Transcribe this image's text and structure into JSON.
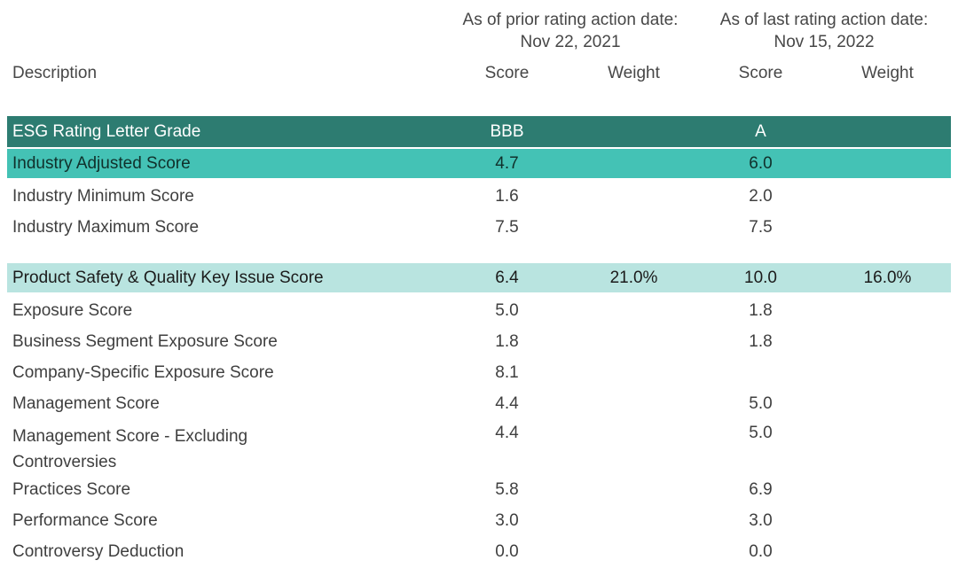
{
  "header": {
    "description_label": "Description",
    "groups": [
      {
        "line1": "As of prior rating action date:",
        "line2": "Nov 22, 2021"
      },
      {
        "line1": "As of last rating action date:",
        "line2": "Nov 15, 2022"
      }
    ],
    "columns": [
      "Score",
      "Weight",
      "Score",
      "Weight"
    ]
  },
  "colors": {
    "grade_row_bg": "#2d7c71",
    "grade_row_text": "#ffffff",
    "highlight_row_bg": "#44c2b5",
    "key_issue_row_bg": "#b9e4e0",
    "body_text": "#3f3f3f",
    "background": "#ffffff"
  },
  "rows": [
    {
      "label": "ESG Rating Letter Grade",
      "score_prior": "BBB",
      "weight_prior": "",
      "score_last": "A",
      "weight_last": "",
      "style": "grade"
    },
    {
      "label": "Industry Adjusted Score",
      "score_prior": "4.7",
      "weight_prior": "",
      "score_last": "6.0",
      "weight_last": "",
      "style": "highlight"
    },
    {
      "label": "Industry Minimum Score",
      "score_prior": "1.6",
      "weight_prior": "",
      "score_last": "2.0",
      "weight_last": "",
      "style": "plain"
    },
    {
      "label": "Industry Maximum Score",
      "score_prior": "7.5",
      "weight_prior": "",
      "score_last": "7.5",
      "weight_last": "",
      "style": "plain"
    },
    {
      "label": "Product Safety & Quality Key Issue Score",
      "score_prior": "6.4",
      "weight_prior": "21.0%",
      "score_last": "10.0",
      "weight_last": "16.0%",
      "style": "keyissue",
      "gap_before": true
    },
    {
      "label": "Exposure Score",
      "score_prior": "5.0",
      "weight_prior": "",
      "score_last": "1.8",
      "weight_last": "",
      "style": "plain"
    },
    {
      "label": "Business Segment Exposure Score",
      "score_prior": "1.8",
      "weight_prior": "",
      "score_last": "1.8",
      "weight_last": "",
      "style": "plain"
    },
    {
      "label": "Company-Specific Exposure Score",
      "score_prior": "8.1",
      "weight_prior": "",
      "score_last": "",
      "weight_last": "",
      "style": "plain"
    },
    {
      "label": "Management Score",
      "score_prior": "4.4",
      "weight_prior": "",
      "score_last": "5.0",
      "weight_last": "",
      "style": "plain"
    },
    {
      "label": "Management Score - Excluding Controversies",
      "score_prior": "4.4",
      "weight_prior": "",
      "score_last": "5.0",
      "weight_last": "",
      "style": "plain",
      "wrap": true
    },
    {
      "label": "Practices Score",
      "score_prior": "5.8",
      "weight_prior": "",
      "score_last": "6.9",
      "weight_last": "",
      "style": "plain"
    },
    {
      "label": "Performance Score",
      "score_prior": "3.0",
      "weight_prior": "",
      "score_last": "3.0",
      "weight_last": "",
      "style": "plain"
    },
    {
      "label": "Controversy Deduction",
      "score_prior": "0.0",
      "weight_prior": "",
      "score_last": "0.0",
      "weight_last": "",
      "style": "plain"
    }
  ]
}
